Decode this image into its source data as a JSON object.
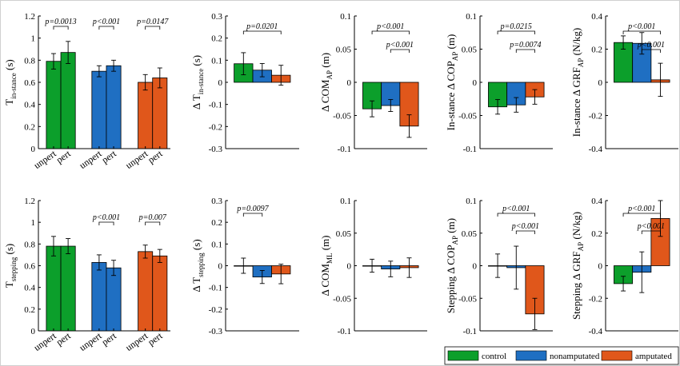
{
  "colors": {
    "control": "#0c9f2b",
    "nonamputated": "#1f6fc2",
    "amputated": "#e0571b"
  },
  "legend": [
    {
      "key": "control",
      "label": "control"
    },
    {
      "key": "nonamputated",
      "label": "nonamputated"
    },
    {
      "key": "amputated",
      "label": "amputated"
    }
  ],
  "chart_data": [
    {
      "type": "bar",
      "ylabel_main": "T",
      "ylabel_sub": "in-stance",
      "ylabel_tail": " (s)",
      "ylim": [
        0,
        1.2
      ],
      "yticks": [
        "0",
        "0.2",
        "0.4",
        "0.6",
        "0.8",
        "1",
        "1.2"
      ],
      "groups": [
        {
          "color": "control",
          "bars": [
            {
              "value": 0.79,
              "err": 0.07
            },
            {
              "value": 0.87,
              "err": 0.1
            }
          ]
        },
        {
          "color": "nonamputated",
          "bars": [
            {
              "value": 0.7,
              "err": 0.05
            },
            {
              "value": 0.75,
              "err": 0.05
            }
          ]
        },
        {
          "color": "amputated",
          "bars": [
            {
              "value": 0.6,
              "err": 0.07
            },
            {
              "value": 0.64,
              "err": 0.09
            }
          ]
        }
      ],
      "xticks": [
        "unpert",
        "pert"
      ],
      "annotations": [
        {
          "text": "p=0.0013",
          "from": [
            0,
            0
          ],
          "to": [
            0,
            1
          ]
        },
        {
          "text": "p<0.001",
          "from": [
            1,
            0
          ],
          "to": [
            1,
            1
          ]
        },
        {
          "text": "p=0.0147",
          "from": [
            2,
            0
          ],
          "to": [
            2,
            1
          ]
        }
      ]
    },
    {
      "type": "bar",
      "ylabel_main": "Δ T",
      "ylabel_sub": "in-stance",
      "ylabel_tail": " (s)",
      "ylim": [
        -0.3,
        0.3
      ],
      "yticks": [
        "-0.3",
        "-0.2",
        "-0.1",
        "0",
        "0.1",
        "0.2",
        "0.3"
      ],
      "groups": [
        {
          "color": "control",
          "bars": [
            {
              "value": 0.084,
              "err": 0.05
            }
          ]
        },
        {
          "color": "nonamputated",
          "bars": [
            {
              "value": 0.055,
              "err": 0.03
            }
          ]
        },
        {
          "color": "amputated",
          "bars": [
            {
              "value": 0.032,
              "err": 0.045
            }
          ]
        }
      ],
      "annotations": [
        {
          "text": "p=0.0201",
          "from": [
            0,
            0
          ],
          "to": [
            2,
            0
          ]
        }
      ]
    },
    {
      "type": "bar",
      "ylabel_main": "Δ COM",
      "ylabel_sub": "AP",
      "ylabel_tail": " (m)",
      "ylim": [
        -0.1,
        0.1
      ],
      "yticks": [
        "-0.1",
        "-0.05",
        "0",
        "0.05",
        "0.1"
      ],
      "groups": [
        {
          "color": "control",
          "bars": [
            {
              "value": -0.04,
              "err": 0.012
            }
          ]
        },
        {
          "color": "nonamputated",
          "bars": [
            {
              "value": -0.035,
              "err": 0.009
            }
          ]
        },
        {
          "color": "amputated",
          "bars": [
            {
              "value": -0.066,
              "err": 0.017
            }
          ]
        }
      ],
      "annotations": [
        {
          "text": "p<0.001",
          "from": [
            0,
            0
          ],
          "to": [
            2,
            0
          ]
        },
        {
          "text": "p<0.001",
          "from": [
            1,
            0
          ],
          "to": [
            2,
            0
          ]
        }
      ]
    },
    {
      "type": "bar",
      "ylabel_main": "In-stance Δ COP",
      "ylabel_sub": "AP",
      "ylabel_tail": " (m)",
      "ylim": [
        -0.1,
        0.1
      ],
      "yticks": [
        "-0.1",
        "-0.05",
        "0",
        "0.05",
        "0.1"
      ],
      "groups": [
        {
          "color": "control",
          "bars": [
            {
              "value": -0.037,
              "err": 0.011
            }
          ]
        },
        {
          "color": "nonamputated",
          "bars": [
            {
              "value": -0.034,
              "err": 0.011
            }
          ]
        },
        {
          "color": "amputated",
          "bars": [
            {
              "value": -0.022,
              "err": 0.011
            }
          ]
        }
      ],
      "annotations": [
        {
          "text": "p=0.0215",
          "from": [
            0,
            0
          ],
          "to": [
            2,
            0
          ]
        },
        {
          "text": "p=0.0074",
          "from": [
            1,
            0
          ],
          "to": [
            2,
            0
          ]
        }
      ]
    },
    {
      "type": "bar",
      "ylabel_main": "In-stance Δ GRF",
      "ylabel_sub": "AP",
      "ylabel_tail": " (N/kg)",
      "ylim": [
        -0.4,
        0.4
      ],
      "yticks": [
        "-0.4",
        "-0.2",
        "0",
        "0.2",
        "0.4"
      ],
      "groups": [
        {
          "color": "control",
          "bars": [
            {
              "value": 0.24,
              "err": 0.04
            }
          ]
        },
        {
          "color": "nonamputated",
          "bars": [
            {
              "value": 0.235,
              "err": 0.065
            }
          ]
        },
        {
          "color": "amputated",
          "bars": [
            {
              "value": 0.015,
              "err": 0.1
            }
          ]
        }
      ],
      "annotations": [
        {
          "text": "p<0.001",
          "from": [
            0,
            0
          ],
          "to": [
            2,
            0
          ]
        },
        {
          "text": "p<0.001",
          "from": [
            1,
            0
          ],
          "to": [
            2,
            0
          ]
        }
      ]
    },
    {
      "type": "bar",
      "ylabel_main": "T",
      "ylabel_sub": "stepping",
      "ylabel_tail": " (s)",
      "ylim": [
        0,
        1.2
      ],
      "yticks": [
        "0",
        "0.2",
        "0.4",
        "0.6",
        "0.8",
        "1",
        "1.2"
      ],
      "groups": [
        {
          "color": "control",
          "bars": [
            {
              "value": 0.78,
              "err": 0.09
            },
            {
              "value": 0.78,
              "err": 0.07
            }
          ]
        },
        {
          "color": "nonamputated",
          "bars": [
            {
              "value": 0.63,
              "err": 0.07
            },
            {
              "value": 0.58,
              "err": 0.07
            }
          ]
        },
        {
          "color": "amputated",
          "bars": [
            {
              "value": 0.73,
              "err": 0.06
            },
            {
              "value": 0.69,
              "err": 0.06
            }
          ]
        }
      ],
      "xticks": [
        "unpert",
        "pert"
      ],
      "annotations": [
        {
          "text": "p<0.001",
          "from": [
            1,
            0
          ],
          "to": [
            1,
            1
          ]
        },
        {
          "text": "p=0.007",
          "from": [
            2,
            0
          ],
          "to": [
            2,
            1
          ]
        }
      ]
    },
    {
      "type": "bar",
      "ylabel_main": "Δ T",
      "ylabel_sub": "stepping",
      "ylabel_tail": " (s)",
      "ylim": [
        -0.3,
        0.3
      ],
      "yticks": [
        "-0.3",
        "-0.2",
        "-0.1",
        "0",
        "0.1",
        "0.2",
        "0.3"
      ],
      "groups": [
        {
          "color": "control",
          "bars": [
            {
              "value": 0.0,
              "err": 0.035
            }
          ]
        },
        {
          "color": "nonamputated",
          "bars": [
            {
              "value": -0.052,
              "err": 0.03
            }
          ]
        },
        {
          "color": "amputated",
          "bars": [
            {
              "value": -0.038,
              "err": 0.045
            }
          ]
        }
      ],
      "annotations": [
        {
          "text": "p=0.0097",
          "from": [
            0,
            0
          ],
          "to": [
            1,
            0
          ]
        }
      ]
    },
    {
      "type": "bar",
      "ylabel_main": "Δ COM",
      "ylabel_sub": "ML",
      "ylabel_tail": " (m)",
      "ylim": [
        -0.1,
        0.1
      ],
      "yticks": [
        "-0.1",
        "-0.05",
        "0",
        "0.05",
        "0.1"
      ],
      "groups": [
        {
          "color": "control",
          "bars": [
            {
              "value": 0.0,
              "err": 0.01
            }
          ]
        },
        {
          "color": "nonamputated",
          "bars": [
            {
              "value": -0.005,
              "err": 0.012
            }
          ]
        },
        {
          "color": "amputated",
          "bars": [
            {
              "value": -0.003,
              "err": 0.015
            }
          ]
        }
      ],
      "annotations": []
    },
    {
      "type": "bar",
      "ylabel_main": "Stepping Δ COP",
      "ylabel_sub": "AP",
      "ylabel_tail": " (m)",
      "ylim": [
        -0.1,
        0.1
      ],
      "yticks": [
        "-0.1",
        "-0.05",
        "0",
        "0.05",
        "0.1"
      ],
      "groups": [
        {
          "color": "control",
          "bars": [
            {
              "value": 0.0,
              "err": 0.018
            }
          ]
        },
        {
          "color": "nonamputated",
          "bars": [
            {
              "value": -0.003,
              "err": 0.033
            }
          ]
        },
        {
          "color": "amputated",
          "bars": [
            {
              "value": -0.074,
              "err": 0.024
            }
          ]
        }
      ],
      "annotations": [
        {
          "text": "p<0.001",
          "from": [
            0,
            0
          ],
          "to": [
            2,
            0
          ]
        },
        {
          "text": "p<0.001",
          "from": [
            1,
            0
          ],
          "to": [
            2,
            0
          ]
        }
      ]
    },
    {
      "type": "bar",
      "ylabel_main": "Stepping Δ GRF",
      "ylabel_sub": "AP",
      "ylabel_tail": " (N/kg)",
      "ylim": [
        -0.4,
        0.4
      ],
      "yticks": [
        "-0.4",
        "-0.2",
        "0",
        "0.2",
        "0.4"
      ],
      "groups": [
        {
          "color": "control",
          "bars": [
            {
              "value": -0.11,
              "err": 0.045
            }
          ]
        },
        {
          "color": "nonamputated",
          "bars": [
            {
              "value": -0.04,
              "err": 0.125
            }
          ]
        },
        {
          "color": "amputated",
          "bars": [
            {
              "value": 0.29,
              "err": 0.11
            }
          ]
        }
      ],
      "annotations": [
        {
          "text": "p<0.001",
          "from": [
            0,
            0
          ],
          "to": [
            2,
            0
          ]
        },
        {
          "text": "p<0.001",
          "from": [
            1,
            0
          ],
          "to": [
            2,
            0
          ]
        }
      ]
    }
  ]
}
